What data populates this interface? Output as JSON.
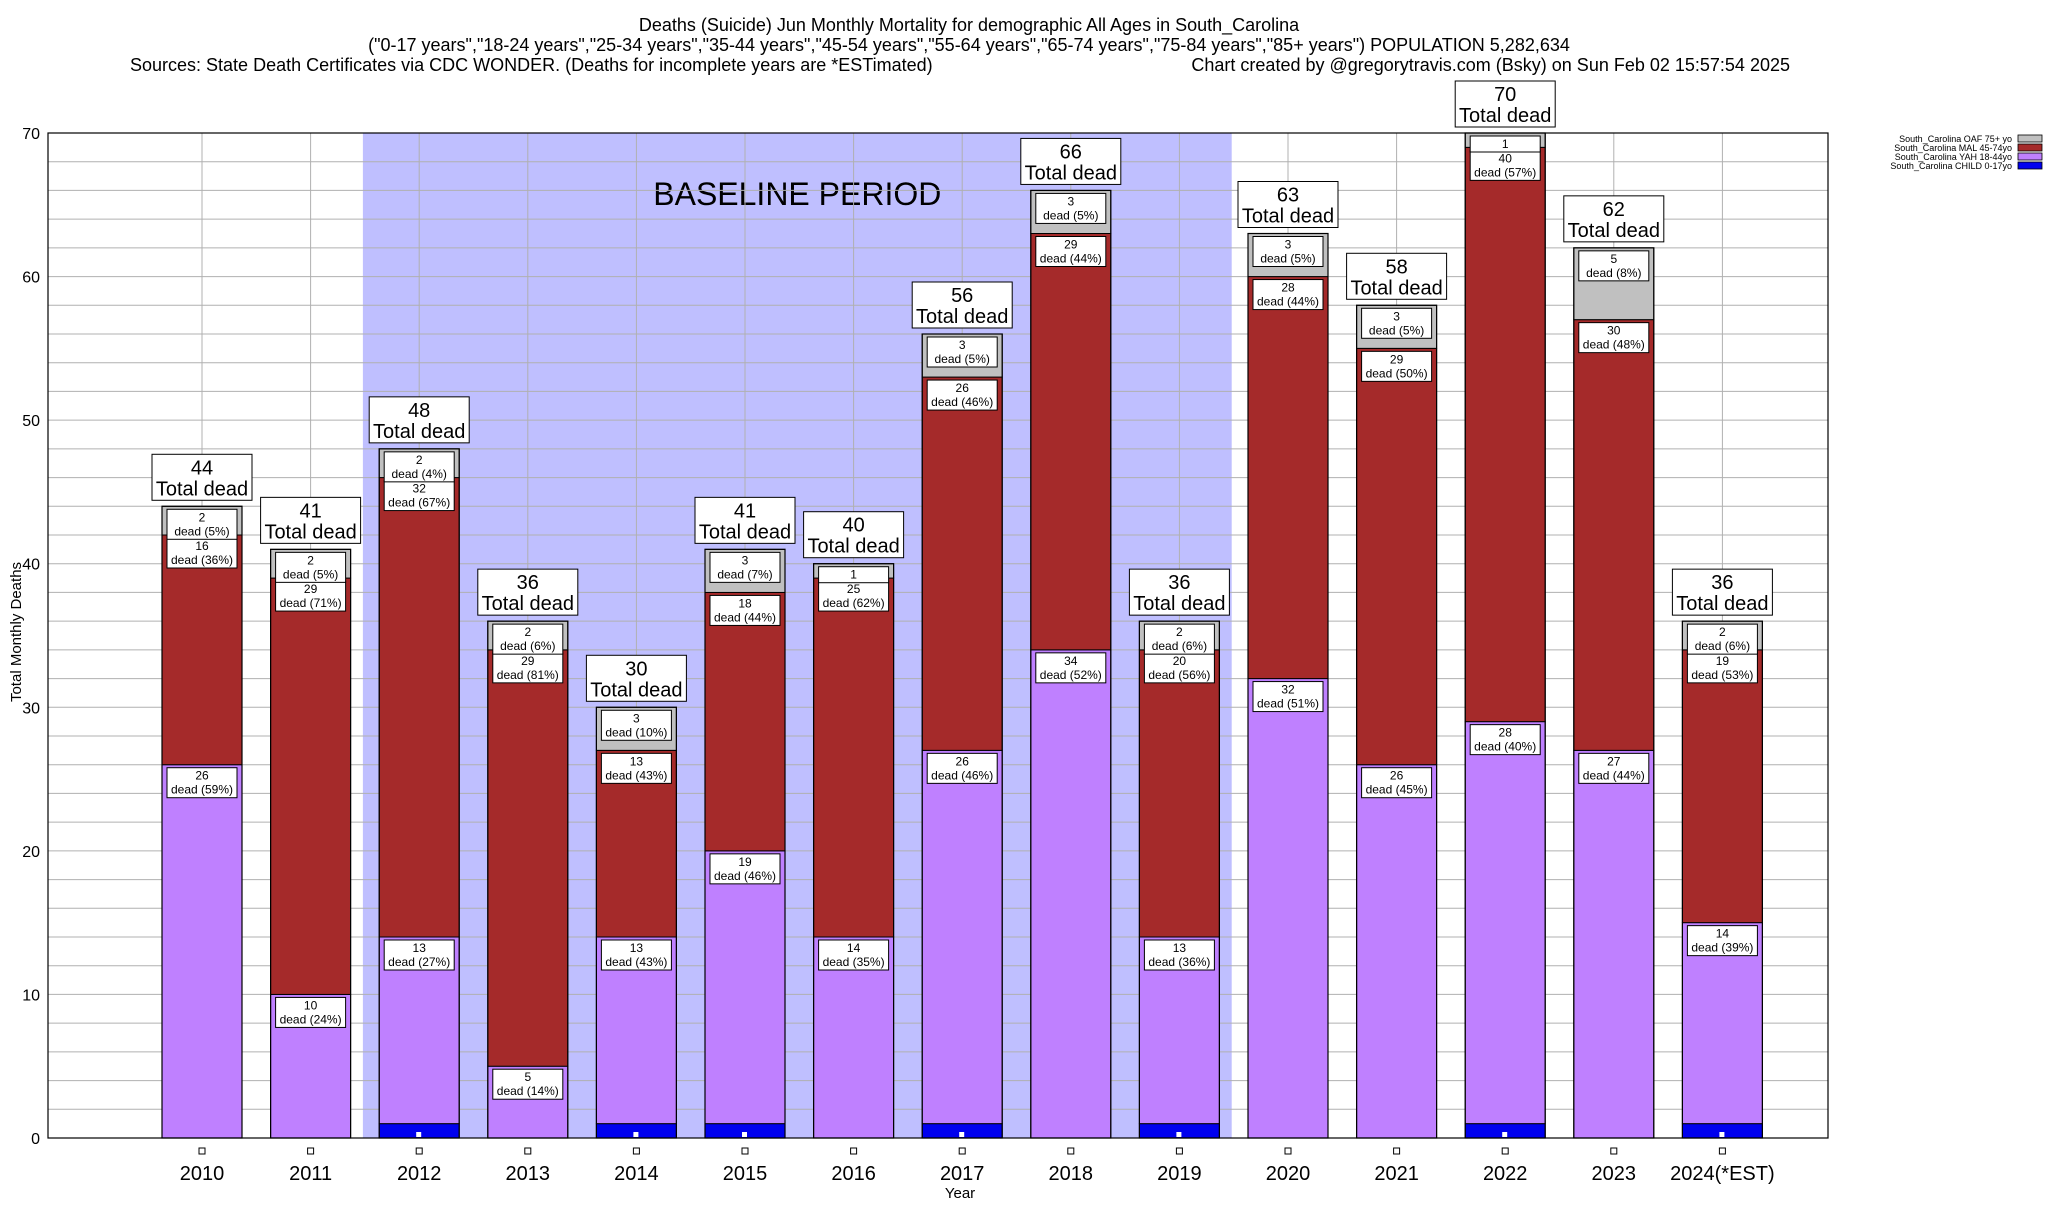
{
  "chart_data": {
    "type": "bar",
    "stacked": true,
    "title_lines": [
      "Deaths (Suicide) Jun Monthly Mortality for demographic All Ages in South_Carolina",
      "(\"0-17 years\",\"18-24 years\",\"25-34 years\",\"35-44 years\",\"45-54 years\",\"55-64 years\",\"65-74 years\",\"75-84 years\",\"85+ years\") POPULATION 5,282,634"
    ],
    "sources_text": "Sources: State Death Certificates via CDC WONDER. (Deaths for incomplete years are *ESTimated)",
    "credit_text": "Chart created by @gregorytravis.com (Bsky) on Sun Feb 02 15:57:54 2025",
    "xlabel": "Year",
    "ylabel": "Total Monthly Deaths",
    "ylim": [
      0,
      70
    ],
    "yticks": [
      "0",
      "10",
      "20",
      "30",
      "40",
      "50",
      "60",
      "70"
    ],
    "baseline_label": "BASELINE PERIOD",
    "baseline_range": [
      "2012",
      "2019"
    ],
    "total_word": "Total dead",
    "categories": [
      "2010",
      "2011",
      "2012",
      "2013",
      "2014",
      "2015",
      "2016",
      "2017",
      "2018",
      "2019",
      "2020",
      "2021",
      "2022",
      "2023",
      "2024(*EST)"
    ],
    "totals": [
      44,
      41,
      48,
      36,
      30,
      41,
      40,
      56,
      66,
      36,
      63,
      58,
      70,
      62,
      36
    ],
    "series": [
      {
        "name": "South_Carolina CHILD 0-17yo",
        "color": "#0000ee",
        "values": [
          0,
          0,
          1,
          0,
          1,
          1,
          0,
          1,
          0,
          1,
          0,
          0,
          1,
          0,
          1
        ],
        "labels": []
      },
      {
        "name": "South_Carolina YAH 18-44yo",
        "color": "#bf80ff",
        "values": [
          26,
          10,
          13,
          5,
          13,
          19,
          14,
          26,
          34,
          13,
          32,
          26,
          28,
          27,
          14
        ],
        "labels": [
          [
            "26",
            "dead (59%)"
          ],
          [
            "10",
            "dead (24%)"
          ],
          [
            "13",
            "dead (27%)"
          ],
          [
            "5",
            "dead (14%)"
          ],
          [
            "13",
            "dead (43%)"
          ],
          [
            "19",
            "dead (46%)"
          ],
          [
            "14",
            "dead (35%)"
          ],
          [
            "26",
            "dead (46%)"
          ],
          [
            "34",
            "dead (52%)"
          ],
          [
            "13",
            "dead (36%)"
          ],
          [
            "32",
            "dead (51%)"
          ],
          [
            "26",
            "dead (45%)"
          ],
          [
            "28",
            "dead (40%)"
          ],
          [
            "27",
            "dead (44%)"
          ],
          [
            "14",
            "dead (39%)"
          ]
        ]
      },
      {
        "name": "South_Carolina MAL 45-74yo",
        "color": "#a52a2a",
        "values": [
          16,
          29,
          32,
          29,
          13,
          18,
          25,
          26,
          29,
          20,
          28,
          29,
          40,
          30,
          19
        ],
        "labels": [
          [
            "16",
            "dead (36%)"
          ],
          [
            "29",
            "dead (71%)"
          ],
          [
            "32",
            "dead (67%)"
          ],
          [
            "29",
            "dead (81%)"
          ],
          [
            "13",
            "dead (43%)"
          ],
          [
            "18",
            "dead (44%)"
          ],
          [
            "25",
            "dead (62%)"
          ],
          [
            "26",
            "dead (46%)"
          ],
          [
            "29",
            "dead (44%)"
          ],
          [
            "20",
            "dead (56%)"
          ],
          [
            "28",
            "dead (44%)"
          ],
          [
            "29",
            "dead (50%)"
          ],
          [
            "40",
            "dead (57%)"
          ],
          [
            "30",
            "dead (48%)"
          ],
          [
            "19",
            "dead (53%)"
          ]
        ]
      },
      {
        "name": "South_Carolina OAF 75+ yo",
        "color": "#c0c0c0",
        "values": [
          2,
          2,
          2,
          2,
          3,
          3,
          1,
          3,
          3,
          2,
          3,
          3,
          1,
          5,
          2
        ],
        "labels": [
          [
            "2",
            "dead (5%)"
          ],
          [
            "2",
            "dead (5%)"
          ],
          [
            "2",
            "dead (4%)"
          ],
          [
            "2",
            "dead (6%)"
          ],
          [
            "3",
            "dead (10%)"
          ],
          [
            "3",
            "dead (7%)"
          ],
          [
            "1",
            ""
          ],
          [
            "3",
            "dead (5%)"
          ],
          [
            "3",
            "dead (5%)"
          ],
          [
            "2",
            "dead (6%)"
          ],
          [
            "3",
            "dead (5%)"
          ],
          [
            "3",
            "dead (5%)"
          ],
          [
            "1",
            ""
          ],
          [
            "5",
            "dead (8%)"
          ],
          [
            "2",
            "dead (6%)"
          ]
        ]
      }
    ],
    "legend_order": [
      3,
      2,
      1,
      0
    ],
    "legend_position": "top-right"
  }
}
